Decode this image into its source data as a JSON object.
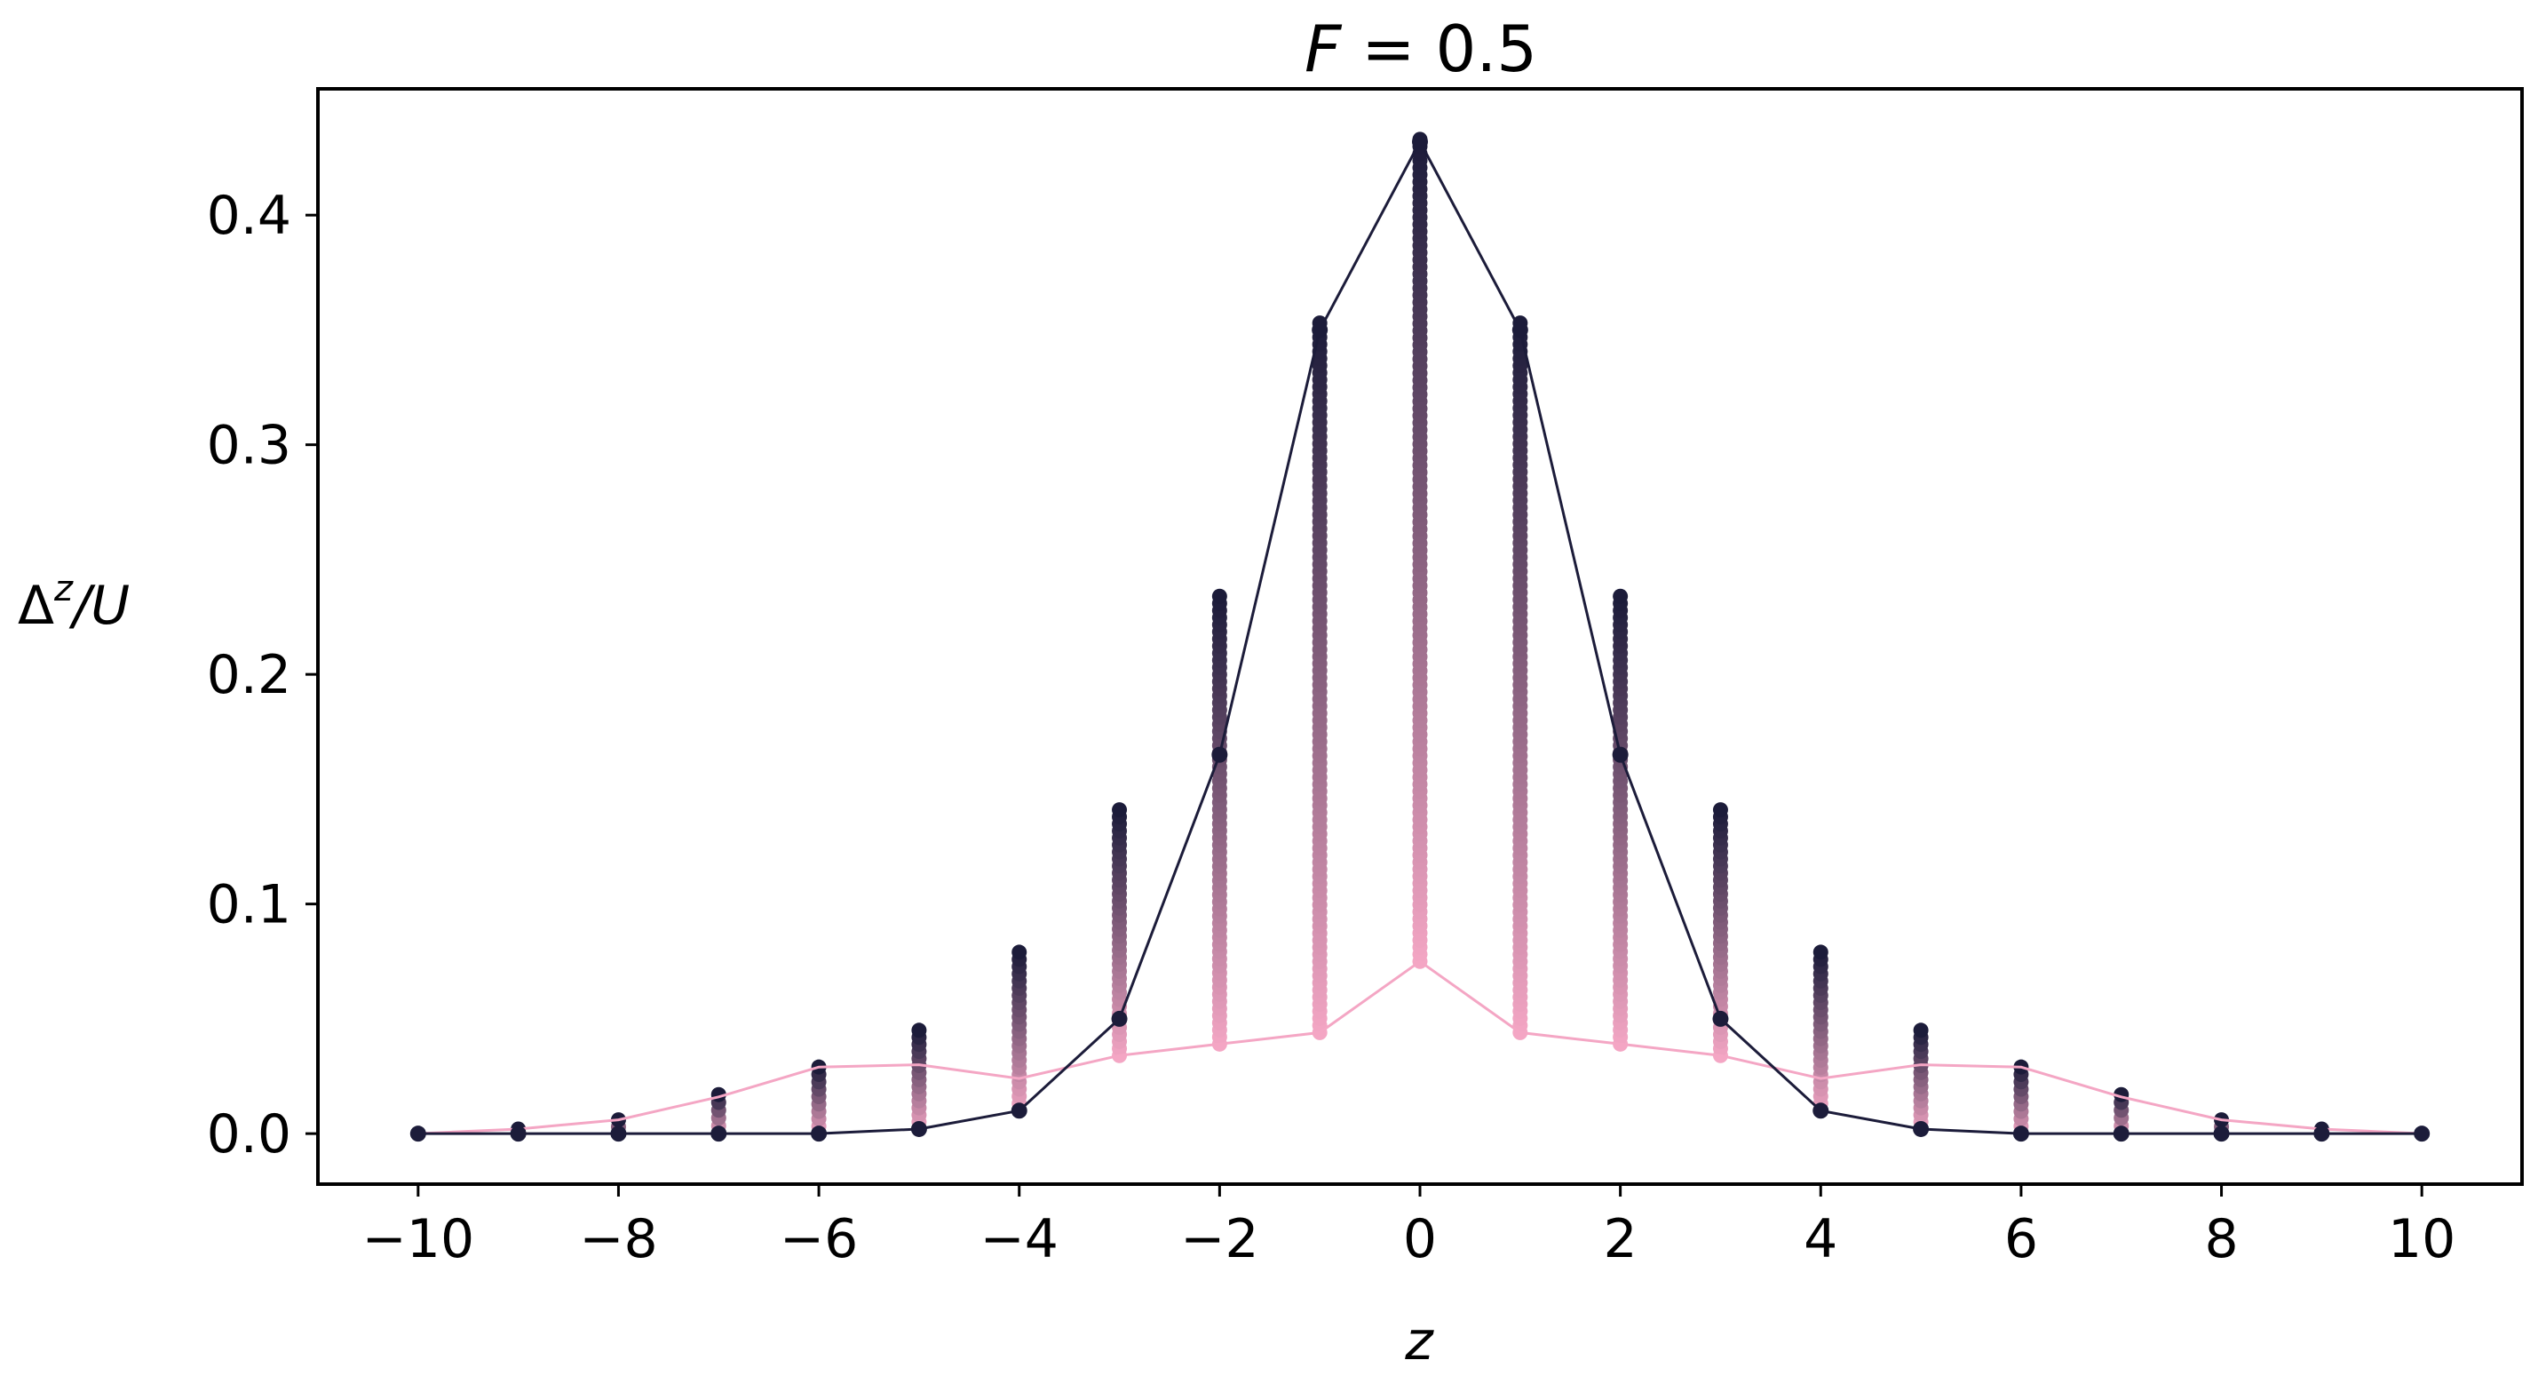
{
  "chart_data": {
    "type": "scatter",
    "title": "F = 0.5",
    "title_parts": {
      "var": "F",
      "rest": " = 0.5"
    },
    "xlabel": "z",
    "ylabel": "Δ^z/U",
    "ylabel_parts": {
      "base": "Δ",
      "sup": "z",
      "rest": "/U"
    },
    "xlim": [
      -11,
      11
    ],
    "ylim": [
      -0.022,
      0.455
    ],
    "xticks": [
      -10,
      -8,
      -6,
      -4,
      -2,
      0,
      2,
      4,
      6,
      8,
      10
    ],
    "xtick_labels": [
      "−10",
      "−8",
      "−6",
      "−4",
      "−2",
      "0",
      "2",
      "4",
      "6",
      "8",
      "10"
    ],
    "yticks": [
      0.0,
      0.1,
      0.2,
      0.3,
      0.4
    ],
    "ytick_labels": [
      "0.0",
      "0.1",
      "0.2",
      "0.3",
      "0.4"
    ],
    "grid": false,
    "colors": {
      "start": "#f4a6c4",
      "end": "#1c1c3a"
    },
    "x": [
      -10,
      -9,
      -8,
      -7,
      -6,
      -5,
      -4,
      -3,
      -2,
      -1,
      0,
      1,
      2,
      3,
      4,
      5,
      6,
      7,
      8,
      9,
      10
    ],
    "series": [
      {
        "role": "dark-line",
        "color": "#1c1c3a",
        "values": [
          0.0,
          0.0,
          0.0,
          0.0,
          0.0,
          0.002,
          0.01,
          0.05,
          0.165,
          0.35,
          0.432,
          0.35,
          0.165,
          0.05,
          0.01,
          0.002,
          0.0,
          0.0,
          0.0,
          0.0,
          0.0
        ]
      },
      {
        "role": "pink-line",
        "color": "#f4a6c4",
        "values": [
          0.0,
          0.002,
          0.006,
          0.016,
          0.029,
          0.03,
          0.024,
          0.034,
          0.039,
          0.044,
          0.075,
          0.044,
          0.039,
          0.034,
          0.024,
          0.03,
          0.029,
          0.016,
          0.006,
          0.002,
          0.0
        ]
      }
    ],
    "columns": [
      {
        "x": -10,
        "min": 0.0,
        "max": 0.0,
        "final": 0.0
      },
      {
        "x": -9,
        "min": 0.0,
        "max": 0.002,
        "final": 0.0
      },
      {
        "x": -8,
        "min": 0.0,
        "max": 0.006,
        "final": 0.0
      },
      {
        "x": -7,
        "min": 0.0,
        "max": 0.017,
        "final": 0.0
      },
      {
        "x": -6,
        "min": 0.0,
        "max": 0.029,
        "final": 0.0
      },
      {
        "x": -5,
        "min": 0.002,
        "max": 0.045,
        "final": 0.002
      },
      {
        "x": -4,
        "min": 0.01,
        "max": 0.079,
        "final": 0.01
      },
      {
        "x": -3,
        "min": 0.034,
        "max": 0.141,
        "final": 0.05
      },
      {
        "x": -2,
        "min": 0.039,
        "max": 0.234,
        "final": 0.165
      },
      {
        "x": -1,
        "min": 0.044,
        "max": 0.353,
        "final": 0.35
      },
      {
        "x": 0,
        "min": 0.075,
        "max": 0.433,
        "final": 0.432
      },
      {
        "x": 1,
        "min": 0.044,
        "max": 0.353,
        "final": 0.35
      },
      {
        "x": 2,
        "min": 0.039,
        "max": 0.234,
        "final": 0.165
      },
      {
        "x": 3,
        "min": 0.034,
        "max": 0.141,
        "final": 0.05
      },
      {
        "x": 4,
        "min": 0.01,
        "max": 0.079,
        "final": 0.01
      },
      {
        "x": 5,
        "min": 0.002,
        "max": 0.045,
        "final": 0.002
      },
      {
        "x": 6,
        "min": 0.0,
        "max": 0.029,
        "final": 0.0
      },
      {
        "x": 7,
        "min": 0.0,
        "max": 0.017,
        "final": 0.0
      },
      {
        "x": 8,
        "min": 0.0,
        "max": 0.006,
        "final": 0.0
      },
      {
        "x": 9,
        "min": 0.0,
        "max": 0.002,
        "final": 0.0
      },
      {
        "x": 10,
        "min": 0.0,
        "max": 0.0,
        "final": 0.0
      }
    ]
  }
}
